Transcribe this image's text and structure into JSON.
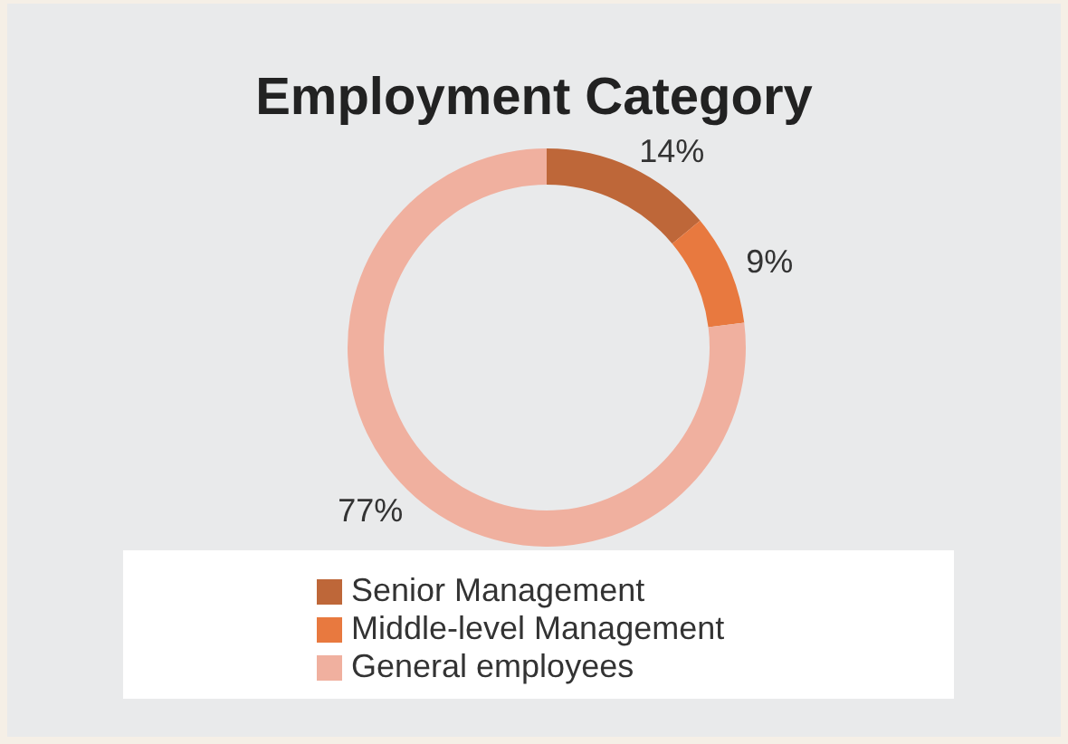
{
  "chart_data": {
    "type": "donut",
    "title": "Employment Category",
    "categories": [
      "Senior Management",
      "Middle-level Management",
      "General employees"
    ],
    "values": [
      14,
      9,
      77
    ],
    "colors": [
      "#be6739",
      "#e8793f",
      "#f0b09f"
    ],
    "value_labels": [
      "14%",
      "9%",
      "77%"
    ],
    "legend": "bottom"
  }
}
